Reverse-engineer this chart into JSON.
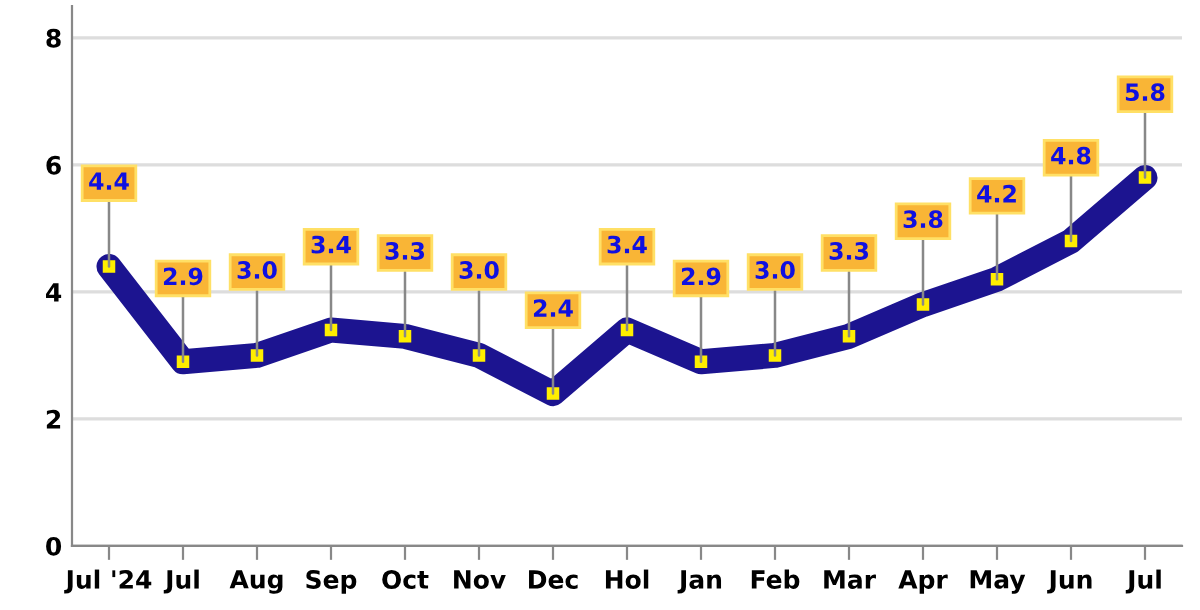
{
  "chart_data": {
    "type": "line",
    "categories": [
      "Jul '24",
      "Jul",
      "Aug",
      "Sep",
      "Oct",
      "Nov",
      "Dec",
      "Hol",
      "Jan",
      "Feb",
      "Mar",
      "Apr",
      "May",
      "Jun",
      "Jul"
    ],
    "series": [
      {
        "color": "#1c1490",
        "values": [
          4.4,
          2.9,
          3.0,
          3.4,
          3.3,
          3.0,
          2.4,
          3.4,
          2.9,
          3.0,
          3.3,
          3.8,
          4.2,
          4.8,
          5.8
        ],
        "value_labels": [
          "4.4",
          "2.9",
          "3.0",
          "3.4",
          "3.3",
          "3.0",
          "2.4",
          "3.4",
          "2.9",
          "3.0",
          "3.3",
          "3.8",
          "4.2",
          "4.8",
          "5.8"
        ]
      }
    ],
    "ylim": [
      0,
      8.5
    ],
    "yticks": [
      0,
      2,
      4,
      6,
      8
    ],
    "grid": "y",
    "marker": "square",
    "line_style": "solid"
  }
}
